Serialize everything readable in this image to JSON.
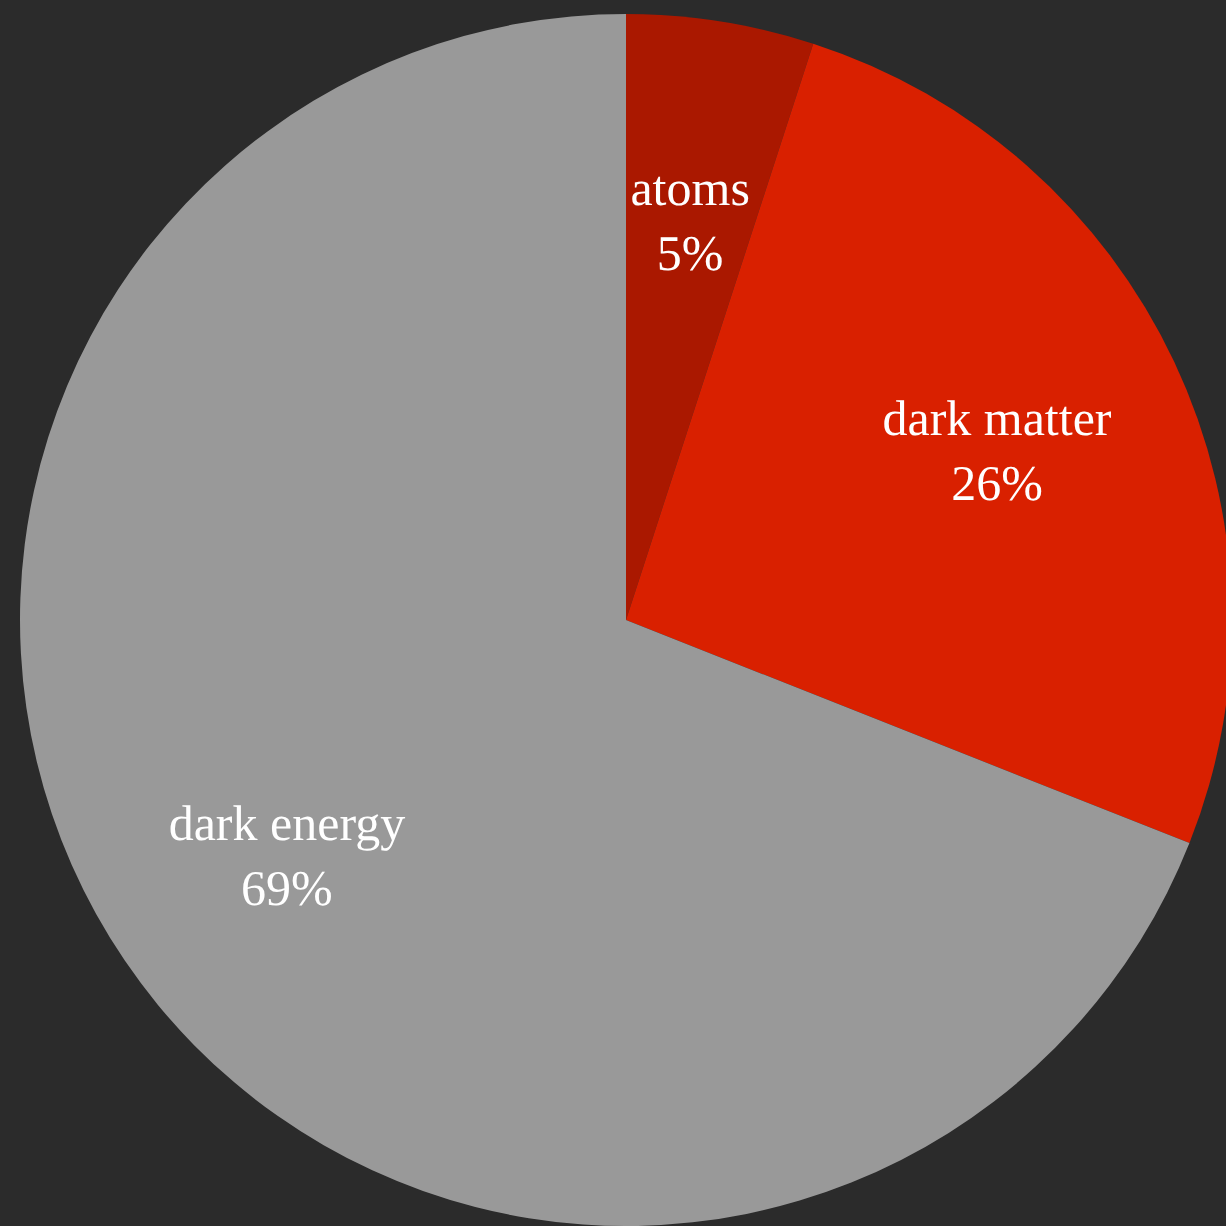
{
  "chart_data": {
    "type": "pie",
    "categories": [
      "atoms",
      "dark matter",
      "dark energy"
    ],
    "values": [
      5,
      26,
      69
    ],
    "colors": [
      "#aa1800",
      "#d92000",
      "#999999"
    ],
    "value_labels": [
      "5%",
      "26%",
      "69%"
    ]
  }
}
